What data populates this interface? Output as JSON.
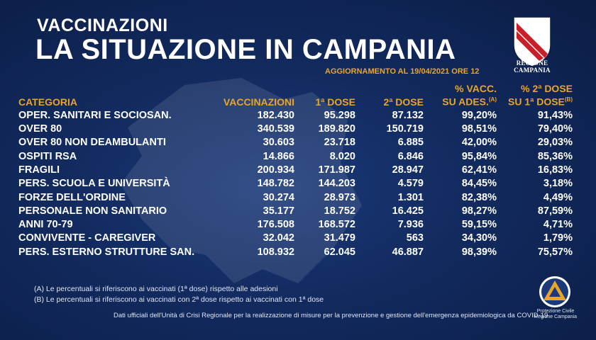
{
  "header": {
    "kicker": "VACCINAZIONI",
    "title": "LA SITUAZIONE IN CAMPANIA",
    "update": "AGGIORNAMENTO AL 19/04/2021 ORE 12"
  },
  "logo": {
    "label": "REGIONE CAMPANIA"
  },
  "table": {
    "headers": {
      "categoria": "CATEGORIA",
      "vaccinazioni": "VACCINAZIONI",
      "dose1": "1ª DOSE",
      "dose2": "2ª DOSE",
      "pct_vacc_line1": "% VACC.",
      "pct_vacc_line2": "SU ADES.",
      "pct_vacc_note": "(A)",
      "pct_dose2_line1": "% 2ª DOSE",
      "pct_dose2_line2": "SU 1ª DOSE",
      "pct_dose2_note": "(B)"
    },
    "rows": [
      {
        "categoria": "OPER. SANITARI E SOCIOSAN.",
        "vaccinazioni": "182.430",
        "dose1": "95.298",
        "dose2": "87.132",
        "pct_ades": "99,20%",
        "pct_dose2": "91,43%"
      },
      {
        "categoria": "OVER 80",
        "vaccinazioni": "340.539",
        "dose1": "189.820",
        "dose2": "150.719",
        "pct_ades": "98,51%",
        "pct_dose2": "79,40%"
      },
      {
        "categoria": "OVER 80 NON DEAMBULANTI",
        "vaccinazioni": "30.603",
        "dose1": "23.718",
        "dose2": "6.885",
        "pct_ades": "42,00%",
        "pct_dose2": "29,03%"
      },
      {
        "categoria": "OSPITI RSA",
        "vaccinazioni": "14.866",
        "dose1": "8.020",
        "dose2": "6.846",
        "pct_ades": "95,84%",
        "pct_dose2": "85,36%"
      },
      {
        "categoria": "FRAGILI",
        "vaccinazioni": "200.934",
        "dose1": "171.987",
        "dose2": "28.947",
        "pct_ades": "62,41%",
        "pct_dose2": "16,83%"
      },
      {
        "categoria": "PERS. SCUOLA E UNIVERSITÀ",
        "vaccinazioni": "148.782",
        "dose1": "144.203",
        "dose2": "4.579",
        "pct_ades": "84,45%",
        "pct_dose2": "3,18%"
      },
      {
        "categoria": "FORZE DELL'ORDINE",
        "vaccinazioni": "30.274",
        "dose1": "28.973",
        "dose2": "1.301",
        "pct_ades": "82,38%",
        "pct_dose2": "4,49%"
      },
      {
        "categoria": "PERSONALE NON SANITARIO",
        "vaccinazioni": "35.177",
        "dose1": "18.752",
        "dose2": "16.425",
        "pct_ades": "98,27%",
        "pct_dose2": "87,59%"
      },
      {
        "categoria": "ANNI 70-79",
        "vaccinazioni": "176.508",
        "dose1": "168.572",
        "dose2": "7.936",
        "pct_ades": "59,15%",
        "pct_dose2": "4,71%"
      },
      {
        "categoria": "CONVIVENTE - CAREGIVER",
        "vaccinazioni": "32.042",
        "dose1": "31.479",
        "dose2": "563",
        "pct_ades": "34,30%",
        "pct_dose2": "1,79%"
      },
      {
        "categoria": "PERS. ESTERNO STRUTTURE SAN.",
        "vaccinazioni": "108.932",
        "dose1": "62.045",
        "dose2": "46.887",
        "pct_ades": "98,39%",
        "pct_dose2": "75,57%"
      }
    ]
  },
  "notes": {
    "a": "(A) Le percentuali si riferiscono ai vaccinati (1ª dose) rispetto alle adesioni",
    "b": "(B) Le percentuali si riferiscono ai vaccinati con 2ª dose rispetto ai vaccinati con 1ª dose"
  },
  "footer": "Dati ufficiali dell'Unità di Crisi Regionale per la realizzazione di misure per la prevenzione e gestione dell'emergenza epidemiologica da COVID-19",
  "protezione_civile": {
    "line1": "Protezione Civile",
    "line2": "Regione Campania"
  },
  "colors": {
    "accent": "#e9a52a",
    "background": "#122a5e",
    "text": "#ffffff"
  }
}
